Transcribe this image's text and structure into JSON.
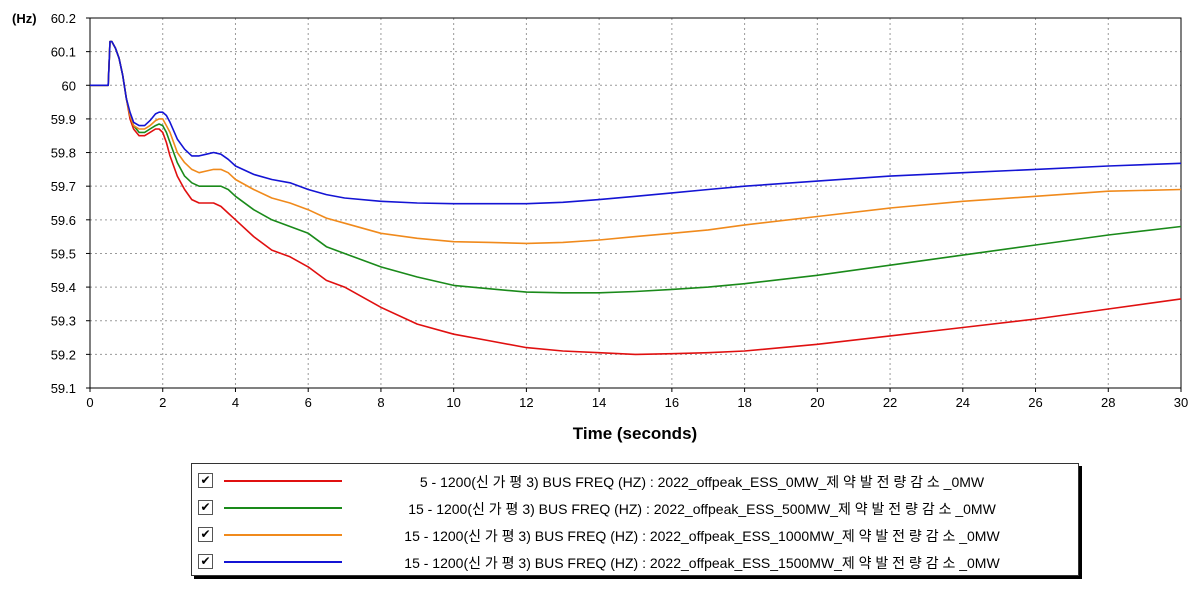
{
  "chart_data": {
    "type": "line",
    "y_unit": "(Hz)",
    "xlabel": "Time (seconds)",
    "xlim": [
      0,
      30
    ],
    "ylim": [
      59.1,
      60.2
    ],
    "x_ticks": [
      "0",
      "2",
      "4",
      "6",
      "8",
      "10",
      "12",
      "14",
      "16",
      "18",
      "20",
      "22",
      "24",
      "26",
      "28",
      "30"
    ],
    "y_ticks": [
      "60.2",
      "60.1",
      "60",
      "59.9",
      "59.8",
      "59.7",
      "59.6",
      "59.5",
      "59.4",
      "59.3",
      "59.2",
      "59.1"
    ],
    "grid": true,
    "legend_position": "bottom",
    "series": [
      {
        "name": "5 - 1200(신 가 평 3) BUS FREQ (HZ) : 2022_offpeak_ESS_0MW_제 약 발 전 량 감 소 _0MW",
        "color": "#e01010",
        "x": [
          0,
          0.5,
          0.55,
          0.6,
          0.7,
          0.8,
          0.9,
          1.0,
          1.1,
          1.2,
          1.35,
          1.5,
          1.65,
          1.8,
          1.9,
          2.0,
          2.1,
          2.2,
          2.4,
          2.6,
          2.8,
          3.0,
          3.2,
          3.4,
          3.6,
          3.8,
          4.0,
          4.5,
          5.0,
          5.5,
          6.0,
          6.5,
          7.0,
          8.0,
          9.0,
          10.0,
          11.0,
          12.0,
          13.0,
          14.0,
          15.0,
          16.0,
          17.0,
          18.0,
          20.0,
          22.0,
          24.0,
          26.0,
          28.0,
          30.0
        ],
        "values": [
          60.0,
          60.0,
          60.13,
          60.13,
          60.11,
          60.08,
          60.03,
          59.96,
          59.9,
          59.87,
          59.85,
          59.85,
          59.86,
          59.87,
          59.87,
          59.86,
          59.83,
          59.79,
          59.73,
          59.69,
          59.66,
          59.65,
          59.65,
          59.65,
          59.64,
          59.62,
          59.6,
          59.55,
          59.51,
          59.49,
          59.46,
          59.42,
          59.4,
          59.34,
          59.29,
          59.26,
          59.24,
          59.22,
          59.21,
          59.205,
          59.2,
          59.202,
          59.205,
          59.21,
          59.23,
          59.255,
          59.28,
          59.305,
          59.335,
          59.365
        ]
      },
      {
        "name": "15 - 1200(신 가 평 3) BUS FREQ (HZ) : 2022_offpeak_ESS_500MW_제 약 발 전 량 감 소 _0MW",
        "color": "#1a8a1a",
        "x": [
          0,
          0.5,
          0.55,
          0.6,
          0.7,
          0.8,
          0.9,
          1.0,
          1.1,
          1.2,
          1.35,
          1.5,
          1.65,
          1.8,
          1.9,
          2.0,
          2.1,
          2.2,
          2.4,
          2.6,
          2.8,
          3.0,
          3.2,
          3.4,
          3.6,
          3.8,
          4.0,
          4.5,
          5.0,
          5.5,
          6.0,
          6.5,
          7.0,
          8.0,
          9.0,
          10.0,
          11.0,
          12.0,
          13.0,
          14.0,
          15.0,
          16.0,
          17.0,
          18.0,
          20.0,
          22.0,
          24.0,
          26.0,
          28.0,
          30.0
        ],
        "values": [
          60.0,
          60.0,
          60.13,
          60.13,
          60.11,
          60.08,
          60.03,
          59.96,
          59.91,
          59.88,
          59.86,
          59.86,
          59.87,
          59.88,
          59.885,
          59.88,
          59.86,
          59.83,
          59.77,
          59.73,
          59.71,
          59.7,
          59.7,
          59.7,
          59.7,
          59.69,
          59.67,
          59.63,
          59.6,
          59.58,
          59.56,
          59.52,
          59.5,
          59.46,
          59.43,
          59.405,
          59.395,
          59.385,
          59.383,
          59.383,
          59.387,
          59.393,
          59.4,
          59.41,
          59.435,
          59.465,
          59.495,
          59.525,
          59.555,
          59.58
        ]
      },
      {
        "name": "15 - 1200(신 가 평 3) BUS FREQ (HZ) : 2022_offpeak_ESS_1000MW_제 약 발 전 량 감 소 _0MW",
        "color": "#f08a1c",
        "x": [
          0,
          0.5,
          0.55,
          0.6,
          0.7,
          0.8,
          0.9,
          1.0,
          1.1,
          1.2,
          1.35,
          1.5,
          1.65,
          1.8,
          1.9,
          2.0,
          2.1,
          2.2,
          2.4,
          2.6,
          2.8,
          3.0,
          3.2,
          3.4,
          3.6,
          3.8,
          4.0,
          4.5,
          5.0,
          5.5,
          6.0,
          6.5,
          7.0,
          8.0,
          9.0,
          10.0,
          11.0,
          12.0,
          13.0,
          14.0,
          15.0,
          16.0,
          17.0,
          18.0,
          20.0,
          22.0,
          24.0,
          26.0,
          28.0,
          30.0
        ],
        "values": [
          60.0,
          60.0,
          60.13,
          60.13,
          60.11,
          60.08,
          60.03,
          59.96,
          59.91,
          59.88,
          59.87,
          59.87,
          59.88,
          59.895,
          59.9,
          59.9,
          59.88,
          59.86,
          59.8,
          59.77,
          59.75,
          59.74,
          59.745,
          59.75,
          59.75,
          59.74,
          59.72,
          59.69,
          59.665,
          59.65,
          59.63,
          59.605,
          59.59,
          59.56,
          59.545,
          59.535,
          59.533,
          59.53,
          59.533,
          59.54,
          59.55,
          59.56,
          59.57,
          59.585,
          59.61,
          59.635,
          59.655,
          59.67,
          59.685,
          59.69
        ]
      },
      {
        "name": "15 - 1200(신 가 평 3) BUS FREQ (HZ) : 2022_offpeak_ESS_1500MW_제 약 발 전 량 감 소 _0MW",
        "color": "#1414d4",
        "x": [
          0,
          0.5,
          0.55,
          0.6,
          0.7,
          0.8,
          0.9,
          1.0,
          1.1,
          1.2,
          1.35,
          1.5,
          1.65,
          1.8,
          1.9,
          2.0,
          2.1,
          2.2,
          2.4,
          2.6,
          2.8,
          3.0,
          3.2,
          3.4,
          3.6,
          3.8,
          4.0,
          4.5,
          5.0,
          5.5,
          6.0,
          6.5,
          7.0,
          8.0,
          9.0,
          10.0,
          11.0,
          12.0,
          13.0,
          14.0,
          15.0,
          16.0,
          17.0,
          18.0,
          20.0,
          22.0,
          24.0,
          26.0,
          28.0,
          30.0
        ],
        "values": [
          60.0,
          60.0,
          60.13,
          60.13,
          60.11,
          60.08,
          60.03,
          59.96,
          59.92,
          59.89,
          59.88,
          59.88,
          59.895,
          59.915,
          59.92,
          59.92,
          59.91,
          59.89,
          59.84,
          59.81,
          59.79,
          59.79,
          59.795,
          59.8,
          59.795,
          59.78,
          59.76,
          59.735,
          59.72,
          59.71,
          59.69,
          59.675,
          59.665,
          59.655,
          59.65,
          59.648,
          59.648,
          59.648,
          59.652,
          59.66,
          59.67,
          59.68,
          59.69,
          59.7,
          59.715,
          59.73,
          59.74,
          59.75,
          59.76,
          59.768
        ]
      }
    ]
  }
}
